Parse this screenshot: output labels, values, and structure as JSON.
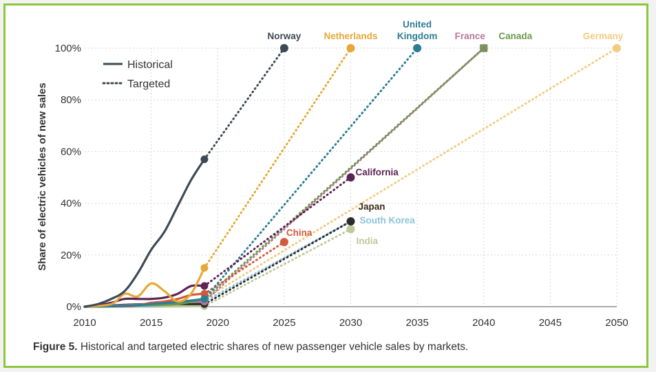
{
  "chart_data": {
    "type": "line",
    "title": "",
    "xlabel": "",
    "ylabel": "Share of electric vehicles of new sales",
    "xlim": [
      2010,
      2050
    ],
    "ylim": [
      0,
      100
    ],
    "x_ticks": [
      "2010",
      "2015",
      "2020",
      "2025",
      "2030",
      "2035",
      "2040",
      "2045",
      "2050"
    ],
    "y_ticks": [
      "0%",
      "20%",
      "40%",
      "60%",
      "80%",
      "100%"
    ],
    "legend": {
      "position": "top-left",
      "items": [
        {
          "label": "Historical",
          "style": "solid"
        },
        {
          "label": "Targeted",
          "style": "dotted"
        }
      ]
    },
    "series": [
      {
        "name": "Norway",
        "color": "#3d4a55",
        "historical": [
          [
            2010,
            0
          ],
          [
            2011,
            1
          ],
          [
            2012,
            3
          ],
          [
            2013,
            6
          ],
          [
            2014,
            13
          ],
          [
            2015,
            22
          ],
          [
            2016,
            29
          ],
          [
            2017,
            39
          ],
          [
            2018,
            49
          ],
          [
            2019,
            57
          ]
        ],
        "target": [
          [
            2019,
            57
          ],
          [
            2025,
            100
          ]
        ],
        "target_marker": "dot"
      },
      {
        "name": "Netherlands",
        "color": "#e7a837",
        "historical": [
          [
            2010,
            0
          ],
          [
            2012,
            1
          ],
          [
            2013,
            5
          ],
          [
            2014,
            4
          ],
          [
            2015,
            9
          ],
          [
            2016,
            6
          ],
          [
            2017,
            2
          ],
          [
            2018,
            5
          ],
          [
            2019,
            15
          ]
        ],
        "target": [
          [
            2019,
            15
          ],
          [
            2030,
            100
          ]
        ],
        "target_marker": "dot"
      },
      {
        "name": "United Kingdom",
        "color": "#2e7d95",
        "historical": [
          [
            2010,
            0
          ],
          [
            2013,
            0.3
          ],
          [
            2015,
            1
          ],
          [
            2017,
            1.8
          ],
          [
            2019,
            3
          ]
        ],
        "target": [
          [
            2019,
            3
          ],
          [
            2035,
            100
          ]
        ],
        "target_marker": "dot"
      },
      {
        "name": "France",
        "color": "#b37895",
        "historical": [
          [
            2010,
            0
          ],
          [
            2013,
            0.5
          ],
          [
            2015,
            1
          ],
          [
            2017,
            1.5
          ],
          [
            2019,
            2
          ]
        ],
        "target": [
          [
            2019,
            2
          ],
          [
            2040,
            100
          ]
        ],
        "target_marker": "dot"
      },
      {
        "name": "Canada",
        "color": "#6b9a4a",
        "historical": [
          [
            2010,
            0
          ],
          [
            2013,
            0.3
          ],
          [
            2015,
            0.6
          ],
          [
            2017,
            1
          ],
          [
            2019,
            3
          ]
        ],
        "target": [
          [
            2019,
            3
          ],
          [
            2040,
            100
          ]
        ],
        "target_marker": "x"
      },
      {
        "name": "Germany",
        "color": "#f3cc82",
        "historical": [
          [
            2010,
            0
          ],
          [
            2013,
            0.3
          ],
          [
            2015,
            1
          ],
          [
            2017,
            1.5
          ],
          [
            2019,
            3
          ]
        ],
        "target": [
          [
            2019,
            3
          ],
          [
            2050,
            100
          ]
        ],
        "target_marker": "dot"
      },
      {
        "name": "California",
        "color": "#5a2453",
        "historical": [
          [
            2010,
            0
          ],
          [
            2011,
            0.5
          ],
          [
            2012,
            1.5
          ],
          [
            2013,
            3
          ],
          [
            2014,
            3
          ],
          [
            2015,
            3
          ],
          [
            2016,
            3.5
          ],
          [
            2017,
            5
          ],
          [
            2018,
            8
          ],
          [
            2019,
            8
          ]
        ],
        "target": [
          [
            2019,
            8
          ],
          [
            2030,
            50
          ]
        ],
        "target_marker": "dot"
      },
      {
        "name": "China",
        "color": "#d35a3a",
        "historical": [
          [
            2010,
            0
          ],
          [
            2013,
            0.2
          ],
          [
            2014,
            0.5
          ],
          [
            2015,
            1.5
          ],
          [
            2016,
            2
          ],
          [
            2017,
            3
          ],
          [
            2018,
            4.5
          ],
          [
            2019,
            5
          ]
        ],
        "target": [
          [
            2019,
            5
          ],
          [
            2025,
            25
          ]
        ],
        "target_marker": "dot"
      },
      {
        "name": "Japan",
        "color": "#2b2b2b",
        "historical": [
          [
            2010,
            0
          ],
          [
            2013,
            0.7
          ],
          [
            2015,
            1
          ],
          [
            2017,
            1
          ],
          [
            2019,
            1
          ]
        ],
        "target": [
          [
            2019,
            1
          ],
          [
            2030,
            33
          ]
        ],
        "target_marker": "dot"
      },
      {
        "name": "South Korea",
        "color": "#8dc3d8",
        "historical": [
          [
            2010,
            0
          ],
          [
            2013,
            0.1
          ],
          [
            2015,
            0.3
          ],
          [
            2017,
            1
          ],
          [
            2019,
            2
          ]
        ],
        "target": [
          [
            2019,
            2
          ],
          [
            2030,
            33
          ]
        ],
        "target_marker": "dot"
      },
      {
        "name": "India",
        "color": "#bfc99a",
        "historical": [
          [
            2010,
            0
          ],
          [
            2015,
            0
          ],
          [
            2019,
            0.2
          ]
        ],
        "target": [
          [
            2019,
            0.2
          ],
          [
            2030,
            30
          ]
        ],
        "target_marker": "dot"
      }
    ]
  },
  "caption": {
    "lead": "Figure 5.",
    "text": " Historical and targeted electric shares of new passenger vehicle sales by markets."
  }
}
